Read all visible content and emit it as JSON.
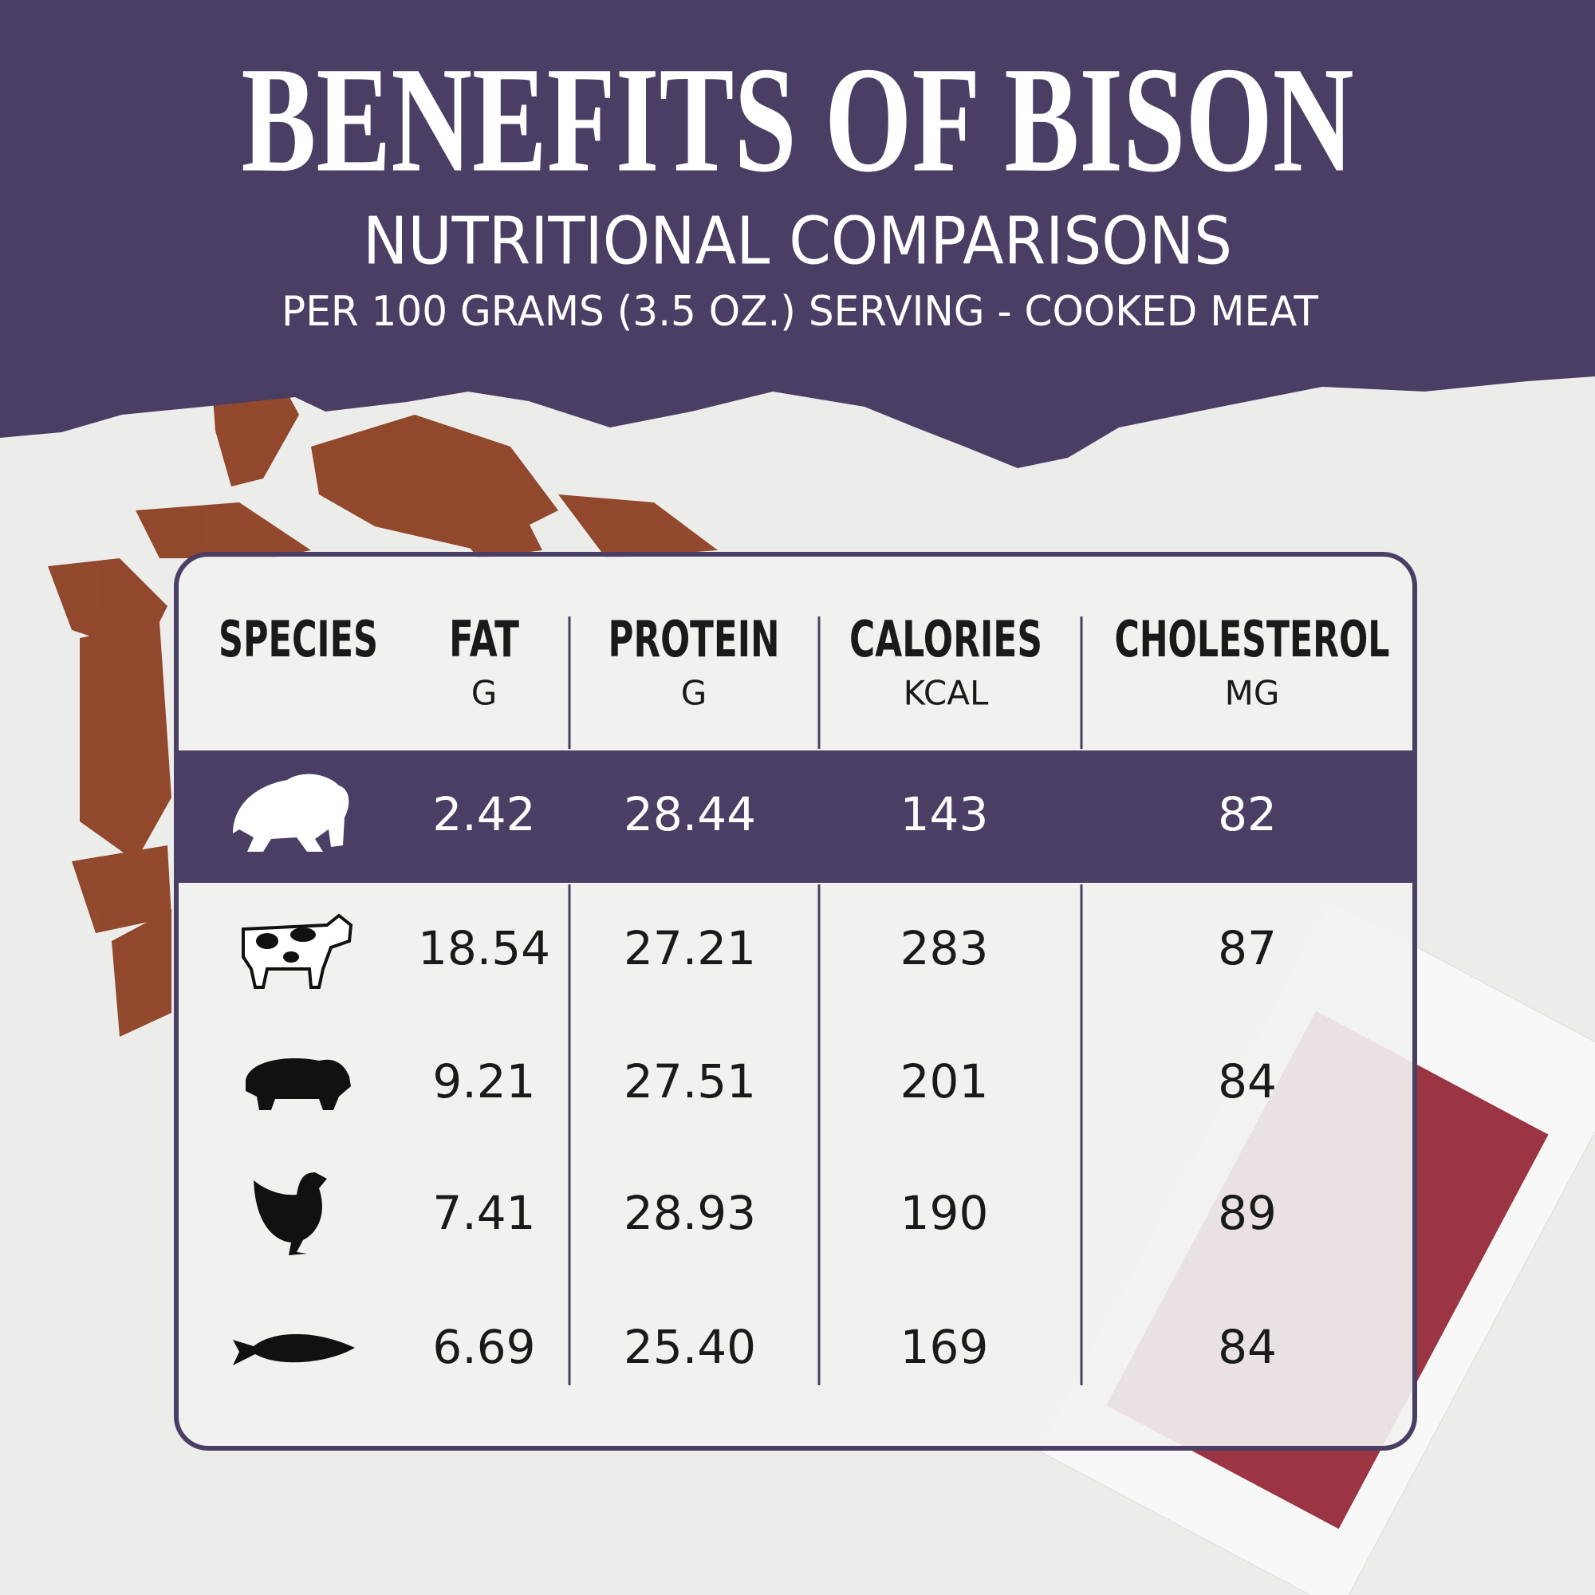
{
  "header": {
    "title": "BENEFITS OF BISON",
    "subtitle": "NUTRITIONAL COMPARISONS",
    "note": "PER 100 GRAMS (3.5 OZ.) SERVING - COOKED MEAT"
  },
  "table": {
    "columns": [
      {
        "name": "SPECIES"
      },
      {
        "name": "FAT",
        "unit": "G"
      },
      {
        "name": "PROTEIN",
        "unit": "G"
      },
      {
        "name": "CALORIES",
        "unit": "KCAL"
      },
      {
        "name": "CHOLESTEROL",
        "unit": "MG"
      }
    ],
    "rows": [
      [
        "2.42",
        "28.44",
        "143",
        "82"
      ],
      [
        "18.54",
        "27.21",
        "283",
        "87"
      ],
      [
        "9.21",
        "27.51",
        "201",
        "84"
      ],
      [
        "7.41",
        "28.93",
        "190",
        "89"
      ],
      [
        "6.69",
        "25.40",
        "169",
        "84"
      ]
    ]
  }
}
